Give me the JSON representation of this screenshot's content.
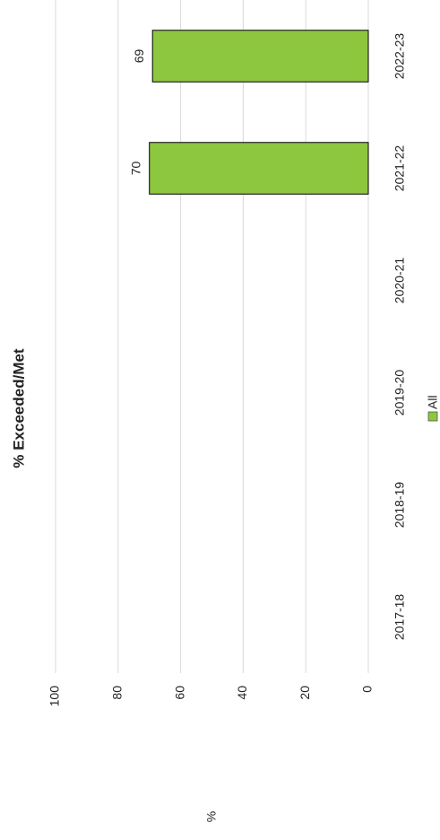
{
  "chart_data": {
    "type": "bar",
    "title": "% Exceeded/Met",
    "y_label": "%",
    "categories": [
      "2017-18",
      "2018-19",
      "2019-20",
      "2020-21",
      "2021-22",
      "2022-23"
    ],
    "series": [
      {
        "name": "All",
        "color": "#8dc63f",
        "values": [
          null,
          null,
          null,
          null,
          70,
          69
        ]
      }
    ],
    "ylim": [
      0,
      100
    ],
    "yticks": [
      0,
      20,
      40,
      60,
      80,
      100
    ],
    "grid": true,
    "legend": "bottom"
  }
}
